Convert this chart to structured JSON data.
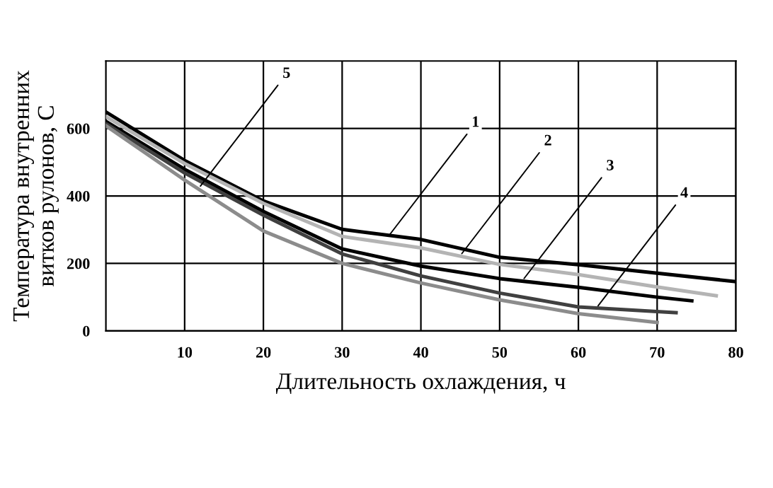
{
  "chart_data": {
    "type": "line",
    "xlabel": "Длительность охлаждения, ч",
    "ylabel": "Температура внутренних\nвитков рулонов, С",
    "series": [
      {
        "color": "#000000",
        "x": [
          0,
          10,
          20,
          30,
          40,
          50,
          60,
          70,
          80
        ],
        "values": [
          649,
          505,
          385,
          301,
          271,
          218,
          196,
          171,
          146
        ]
      },
      {
        "color": "#b4b4b4",
        "x": [
          0,
          10,
          20,
          30,
          40,
          50,
          60,
          70,
          77.5
        ],
        "values": [
          635,
          496,
          378,
          280,
          246,
          197,
          167,
          130,
          104
        ]
      },
      {
        "color": "#000000",
        "x": [
          0,
          10,
          20,
          30,
          40,
          50,
          60,
          70,
          74.4
        ],
        "values": [
          621,
          479,
          354,
          243,
          192,
          155,
          129,
          100,
          89
        ]
      },
      {
        "color": "#404040",
        "x": [
          0,
          10,
          20,
          30,
          40,
          50,
          60,
          72.4
        ],
        "values": [
          614,
          468,
          343,
          228,
          163,
          112,
          71,
          54
        ]
      },
      {
        "color": "#8c8c8c",
        "x": [
          0,
          10,
          20,
          30,
          40,
          50,
          60,
          70
        ],
        "values": [
          608,
          447,
          296,
          200,
          142,
          92,
          51,
          25
        ]
      }
    ],
    "annotations": [
      {
        "text": "1",
        "x": 35.7,
        "y": 275
      },
      {
        "text": "2",
        "x": 44.9,
        "y": 220
      },
      {
        "text": "3",
        "x": 52.8,
        "y": 146
      },
      {
        "text": "4",
        "x": 62.2,
        "y": 65
      },
      {
        "text": "5",
        "x": 11.7,
        "y": 420
      }
    ],
    "xlim": [
      0,
      80
    ],
    "xticks": [
      10,
      20,
      30,
      40,
      50,
      60,
      70,
      80
    ],
    "ylim": [
      0,
      800
    ],
    "yticks": [
      0,
      200,
      400,
      600
    ],
    "grid": true,
    "legend": false,
    "marker": "none",
    "line_style": "solid"
  }
}
